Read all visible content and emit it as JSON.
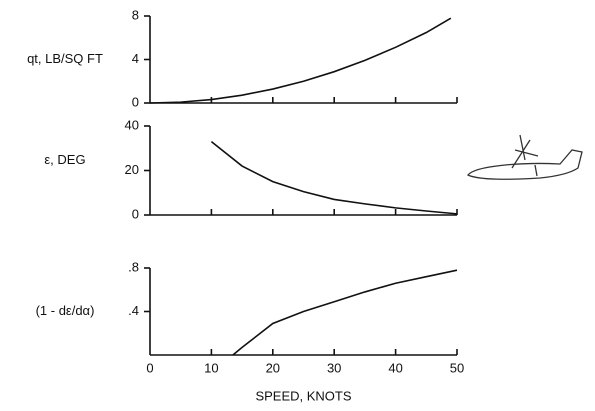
{
  "chart_data": [
    {
      "type": "line",
      "ylabel": "qt, LB/SQ FT",
      "xlim": [
        0,
        50
      ],
      "ylim": [
        0,
        8
      ],
      "yticks": [
        0,
        4,
        8
      ],
      "color": "#111111",
      "x": [
        0,
        5,
        10,
        15,
        20,
        25,
        30,
        35,
        40,
        45,
        49
      ],
      "values": [
        0,
        0.08,
        0.32,
        0.72,
        1.28,
        2.0,
        2.88,
        3.92,
        5.12,
        6.48,
        7.8
      ]
    },
    {
      "type": "line",
      "ylabel": "ε, DEG",
      "xlim": [
        0,
        50
      ],
      "ylim": [
        0,
        40
      ],
      "yticks": [
        0,
        20,
        40
      ],
      "color": "#111111",
      "x": [
        10,
        15,
        20,
        25,
        30,
        35,
        40,
        45,
        50
      ],
      "values": [
        33,
        22,
        15,
        10.5,
        7,
        5,
        3.2,
        1.8,
        0.5
      ]
    },
    {
      "type": "line",
      "ylabel": "(1 - dε/dα)",
      "xlabel": "SPEED, KNOTS",
      "xlim": [
        0,
        50
      ],
      "ylim": [
        0,
        0.8
      ],
      "yticks": [
        {
          "value": 0.4,
          "label": ".4"
        },
        {
          "value": 0.8,
          "label": ".8"
        }
      ],
      "xticks": [
        0,
        10,
        20,
        30,
        40,
        50
      ],
      "color": "#111111",
      "x": [
        13.5,
        15,
        20,
        25,
        30,
        35,
        40,
        45,
        50
      ],
      "values": [
        0,
        0.07,
        0.29,
        0.4,
        0.49,
        0.58,
        0.66,
        0.72,
        0.78
      ]
    }
  ]
}
